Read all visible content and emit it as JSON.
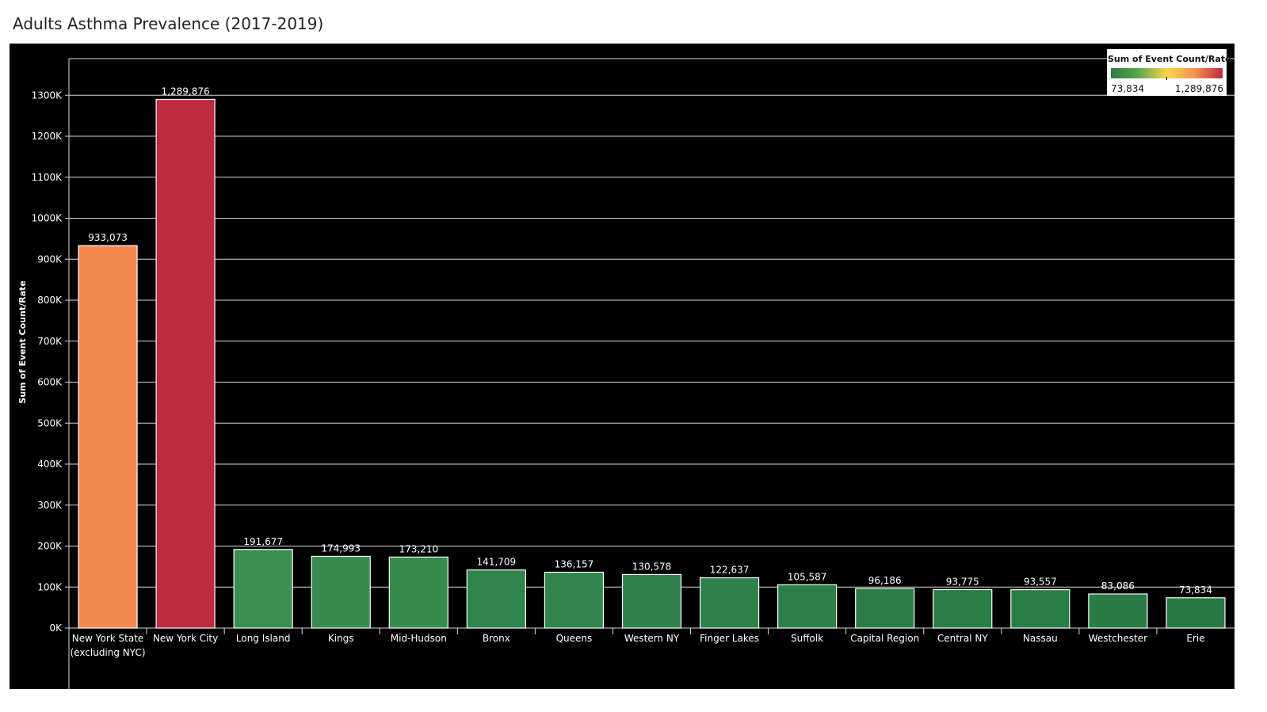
{
  "title": "Adults Asthma Prevalence (2017-2019)",
  "legend": {
    "title": "Sum of Event Count/Rate",
    "min_label": "73,834",
    "max_label": "1,289,876",
    "colors": [
      "#2b7a43",
      "#5aa94f",
      "#f7d64a",
      "#f5924e",
      "#c0283e"
    ]
  },
  "chart_data": {
    "type": "bar",
    "title": "Adults Asthma Prevalence (2017-2019)",
    "ylabel": "Sum of Event Count/Rate",
    "xlabel": "",
    "ylim": [
      0,
      1400000
    ],
    "yticks": [
      0,
      100000,
      200000,
      300000,
      400000,
      500000,
      600000,
      700000,
      800000,
      900000,
      1000000,
      1100000,
      1200000,
      1300000
    ],
    "ytick_labels": [
      "0K",
      "100K",
      "200K",
      "300K",
      "400K",
      "500K",
      "600K",
      "700K",
      "800K",
      "900K",
      "1000K",
      "1100K",
      "1200K",
      "1300K"
    ],
    "grid": true,
    "background": "#000000",
    "categories": [
      [
        "New York State",
        "(excluding NYC)"
      ],
      [
        "New York City"
      ],
      [
        "Long Island"
      ],
      [
        "Kings"
      ],
      [
        "Mid-Hudson"
      ],
      [
        "Bronx"
      ],
      [
        "Queens"
      ],
      [
        "Western NY"
      ],
      [
        "Finger Lakes"
      ],
      [
        "Suffolk"
      ],
      [
        "Capital Region"
      ],
      [
        "Central NY"
      ],
      [
        "Nassau"
      ],
      [
        "Westchester"
      ],
      [
        "Erie"
      ]
    ],
    "values": [
      933073,
      1289876,
      191677,
      174993,
      173210,
      141709,
      136157,
      130578,
      122637,
      105587,
      96186,
      93775,
      93557,
      83086,
      73834
    ],
    "value_labels": [
      "933,073",
      "1,289,876",
      "191,677",
      "174,993",
      "173,210",
      "141,709",
      "136,157",
      "130,578",
      "122,637",
      "105,587",
      "96,186",
      "93,775",
      "93,557",
      "83,086",
      "73,834"
    ],
    "bar_colors": [
      "#f5884f",
      "#bf2a3f",
      "#3a8f52",
      "#368b4f",
      "#368b4f",
      "#2f854b",
      "#2f854b",
      "#2e834a",
      "#2d8249",
      "#2b7f47",
      "#2a7d46",
      "#2a7d46",
      "#2a7d46",
      "#297c45",
      "#287a44"
    ]
  }
}
